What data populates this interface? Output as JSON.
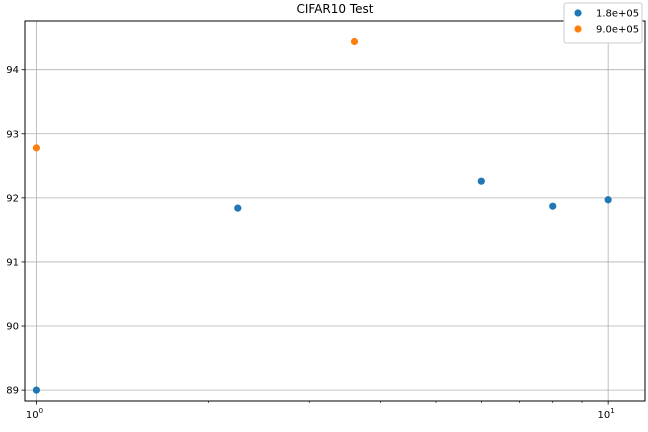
{
  "chart_data": {
    "type": "scatter",
    "title": "CIFAR10 Test",
    "xlabel": "",
    "ylabel": "",
    "xscale": "log",
    "xlim": [
      0.955,
      11.6
    ],
    "ylim": [
      88.83,
      94.76
    ],
    "grid": true,
    "legend_position": "top-right",
    "x_ticks": [
      {
        "value": 1,
        "base": "10",
        "exp": "0"
      },
      {
        "value": 10,
        "base": "10",
        "exp": "1"
      }
    ],
    "y_ticks": [
      89,
      90,
      91,
      92,
      93,
      94
    ],
    "series": [
      {
        "name": "1.8e+05",
        "color": "#1f77b4",
        "points": [
          {
            "x": 1.0,
            "y": 89.0
          },
          {
            "x": 2.25,
            "y": 91.84
          },
          {
            "x": 6.0,
            "y": 92.26
          },
          {
            "x": 8.0,
            "y": 91.87
          },
          {
            "x": 10.0,
            "y": 91.97
          }
        ]
      },
      {
        "name": "9.0e+05",
        "color": "#ff7f0e",
        "points": [
          {
            "x": 1.0,
            "y": 92.78
          },
          {
            "x": 3.6,
            "y": 94.44
          }
        ]
      }
    ]
  }
}
